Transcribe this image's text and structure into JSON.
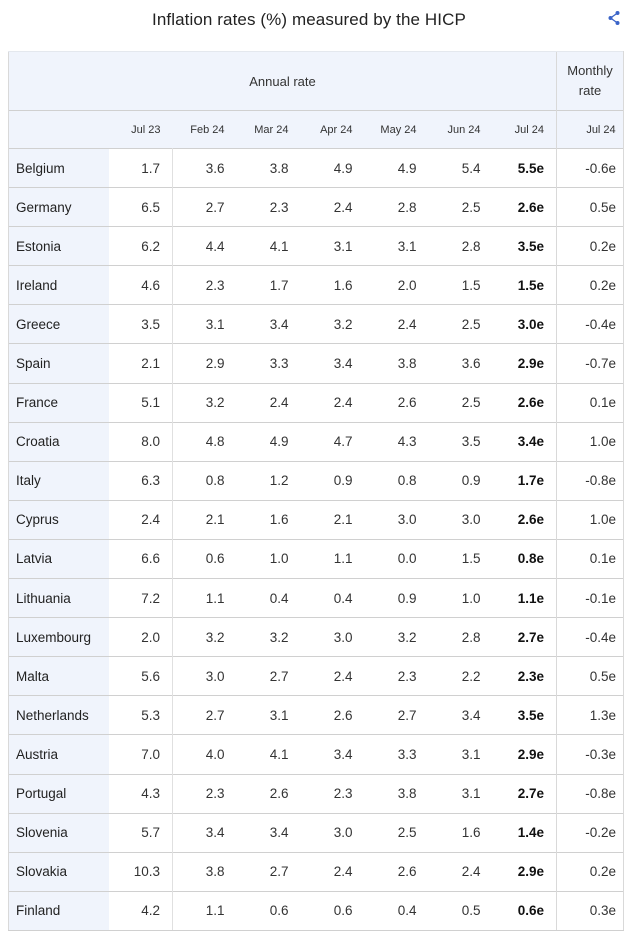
{
  "title": "Inflation rates (%) measured by the HICP",
  "share_icon": "share-icon",
  "header": {
    "annual_label": "Annual rate",
    "monthly_label_line1": "Monthly",
    "monthly_label_line2": "rate",
    "columns": [
      "Jul 23",
      "Feb 24",
      "Mar 24",
      "Apr 24",
      "May 24",
      "Jun 24",
      "Jul 24",
      "Jul 24"
    ]
  },
  "rows": [
    {
      "country": "Belgium",
      "values": [
        "1.7",
        "3.6",
        "3.8",
        "4.9",
        "4.9",
        "5.4",
        "5.5e",
        "-0.6e"
      ]
    },
    {
      "country": "Germany",
      "values": [
        "6.5",
        "2.7",
        "2.3",
        "2.4",
        "2.8",
        "2.5",
        "2.6e",
        "0.5e"
      ]
    },
    {
      "country": "Estonia",
      "values": [
        "6.2",
        "4.4",
        "4.1",
        "3.1",
        "3.1",
        "2.8",
        "3.5e",
        "0.2e"
      ]
    },
    {
      "country": "Ireland",
      "values": [
        "4.6",
        "2.3",
        "1.7",
        "1.6",
        "2.0",
        "1.5",
        "1.5e",
        "0.2e"
      ]
    },
    {
      "country": "Greece",
      "values": [
        "3.5",
        "3.1",
        "3.4",
        "3.2",
        "2.4",
        "2.5",
        "3.0e",
        "-0.4e"
      ]
    },
    {
      "country": "Spain",
      "values": [
        "2.1",
        "2.9",
        "3.3",
        "3.4",
        "3.8",
        "3.6",
        "2.9e",
        "-0.7e"
      ]
    },
    {
      "country": "France",
      "values": [
        "5.1",
        "3.2",
        "2.4",
        "2.4",
        "2.6",
        "2.5",
        "2.6e",
        "0.1e"
      ]
    },
    {
      "country": "Croatia",
      "values": [
        "8.0",
        "4.8",
        "4.9",
        "4.7",
        "4.3",
        "3.5",
        "3.4e",
        "1.0e"
      ]
    },
    {
      "country": "Italy",
      "values": [
        "6.3",
        "0.8",
        "1.2",
        "0.9",
        "0.8",
        "0.9",
        "1.7e",
        "-0.8e"
      ]
    },
    {
      "country": "Cyprus",
      "values": [
        "2.4",
        "2.1",
        "1.6",
        "2.1",
        "3.0",
        "3.0",
        "2.6e",
        "1.0e"
      ]
    },
    {
      "country": "Latvia",
      "values": [
        "6.6",
        "0.6",
        "1.0",
        "1.1",
        "0.0",
        "1.5",
        "0.8e",
        "0.1e"
      ]
    },
    {
      "country": "Lithuania",
      "values": [
        "7.2",
        "1.1",
        "0.4",
        "0.4",
        "0.9",
        "1.0",
        "1.1e",
        "-0.1e"
      ]
    },
    {
      "country": "Luxembourg",
      "values": [
        "2.0",
        "3.2",
        "3.2",
        "3.0",
        "3.2",
        "2.8",
        "2.7e",
        "-0.4e"
      ]
    },
    {
      "country": "Malta",
      "values": [
        "5.6",
        "3.0",
        "2.7",
        "2.4",
        "2.3",
        "2.2",
        "2.3e",
        "0.5e"
      ]
    },
    {
      "country": "Netherlands",
      "values": [
        "5.3",
        "2.7",
        "3.1",
        "2.6",
        "2.7",
        "3.4",
        "3.5e",
        "1.3e"
      ]
    },
    {
      "country": "Austria",
      "values": [
        "7.0",
        "4.0",
        "4.1",
        "3.4",
        "3.3",
        "3.1",
        "2.9e",
        "-0.3e"
      ]
    },
    {
      "country": "Portugal",
      "values": [
        "4.3",
        "2.3",
        "2.6",
        "2.3",
        "3.8",
        "3.1",
        "2.7e",
        "-0.8e"
      ]
    },
    {
      "country": "Slovenia",
      "values": [
        "5.7",
        "3.4",
        "3.4",
        "3.0",
        "2.5",
        "1.6",
        "1.4e",
        "-0.2e"
      ]
    },
    {
      "country": "Slovakia",
      "values": [
        "10.3",
        "3.8",
        "2.7",
        "2.4",
        "2.6",
        "2.4",
        "2.9e",
        "0.2e"
      ]
    },
    {
      "country": "Finland",
      "values": [
        "4.2",
        "1.1",
        "0.6",
        "0.6",
        "0.4",
        "0.5",
        "0.6e",
        "0.3e"
      ]
    }
  ],
  "colors": {
    "header_band": "#f0f4fc",
    "accent": "#3b64c8"
  }
}
